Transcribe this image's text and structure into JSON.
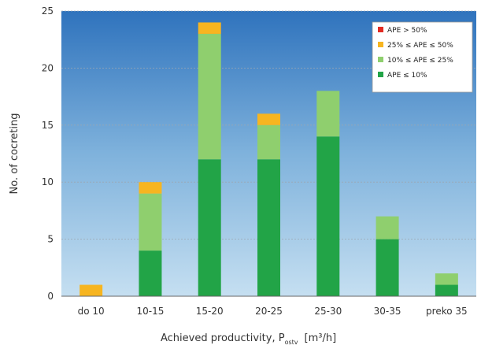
{
  "chart_data": {
    "type": "bar",
    "stacked": true,
    "categories": [
      "do 10",
      "10-15",
      "15-20",
      "20-25",
      "25-30",
      "30-35",
      "preko 35"
    ],
    "series": [
      {
        "name": "APE ≤ 10%",
        "color": "#22a447",
        "values": [
          0,
          4,
          12,
          12,
          14,
          5,
          1
        ]
      },
      {
        "name": "10% ≤ APE ≤ 25%",
        "color": "#8fcf6e",
        "values": [
          0,
          5,
          11,
          3,
          4,
          2,
          1
        ]
      },
      {
        "name": "25% ≤ APE ≤ 50%",
        "color": "#f7b520",
        "values": [
          1,
          1,
          1,
          1,
          0,
          0,
          0
        ]
      },
      {
        "name": "APE > 50%",
        "color": "#e32b22",
        "values": [
          0,
          0,
          0,
          0,
          0,
          0,
          0
        ]
      }
    ],
    "legend_order": [
      "APE > 50%",
      "25% ≤ APE ≤ 50%",
      "10% ≤ APE ≤ 25%",
      "APE ≤ 10%"
    ],
    "ylabel": "No. of cocreting",
    "xlabel": "Achieved productivity, P",
    "xlabel_sub": "ostv",
    "xlabel_unit": "[m³/h]",
    "ylim": [
      0,
      25
    ],
    "yticks": [
      "0",
      "5",
      "10",
      "15",
      "20",
      "25"
    ],
    "grid": true,
    "legend_position": "top-right",
    "plot_background": [
      "#2f73bd",
      "#c5dff1"
    ]
  }
}
